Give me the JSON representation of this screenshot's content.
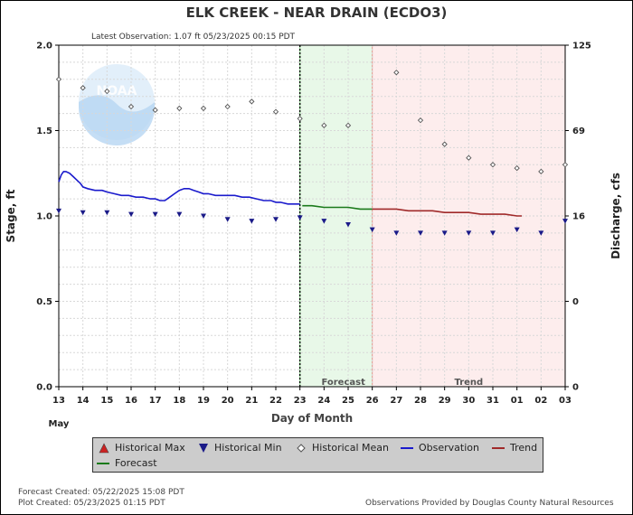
{
  "chart_data": {
    "type": "line",
    "title": "ELK CREEK - NEAR DRAIN  (ECDO3)",
    "latest_observation": "Latest Observation: 1.07 ft 05/23/2025 00:15 PDT",
    "xlabel": "Day of Month",
    "ylabel": "Stage, ft",
    "y2label": "Discharge, cfs",
    "month_label": "May",
    "x_ticks": [
      "13",
      "14",
      "15",
      "16",
      "17",
      "18",
      "19",
      "20",
      "21",
      "22",
      "23",
      "24",
      "25",
      "26",
      "27",
      "28",
      "29",
      "30",
      "31",
      "01",
      "02",
      "03"
    ],
    "xlim": [
      13,
      34
    ],
    "ylim": [
      0,
      2.0
    ],
    "y_ticks": [
      "0.0",
      "0.5",
      "1.0",
      "1.5",
      "2.0"
    ],
    "y2_ticks": [
      {
        "stage": 0.0,
        "label": "0"
      },
      {
        "stage": 0.5,
        "label": "0"
      },
      {
        "stage": 1.0,
        "label": "16"
      },
      {
        "stage": 1.5,
        "label": "69"
      },
      {
        "stage": 2.0,
        "label": "125"
      }
    ],
    "grid": true,
    "now_x": 23,
    "regions": [
      {
        "name": "Forecast",
        "from": 23,
        "to": 26,
        "color": "#e8f8e8",
        "border": "#7fcc7f"
      },
      {
        "name": "Trend",
        "from": 26,
        "to": 34,
        "color": "#fdeded",
        "border": "#ee9999"
      }
    ],
    "series": [
      {
        "name": "Observation",
        "color": "#1a1acc",
        "style": "line",
        "x": [
          13.0,
          13.1,
          13.2,
          13.3,
          13.45,
          13.6,
          13.75,
          13.9,
          14.0,
          14.2,
          14.5,
          14.8,
          15.0,
          15.3,
          15.6,
          15.9,
          16.2,
          16.5,
          16.8,
          17.0,
          17.2,
          17.4,
          17.6,
          17.8,
          18.0,
          18.2,
          18.4,
          18.6,
          18.8,
          19.0,
          19.2,
          19.5,
          19.8,
          20.0,
          20.3,
          20.6,
          20.9,
          21.2,
          21.5,
          21.8,
          22.0,
          22.2,
          22.5,
          22.8,
          23.0
        ],
        "y": [
          1.2,
          1.24,
          1.26,
          1.26,
          1.25,
          1.23,
          1.21,
          1.19,
          1.17,
          1.16,
          1.15,
          1.15,
          1.14,
          1.13,
          1.12,
          1.12,
          1.11,
          1.11,
          1.1,
          1.1,
          1.09,
          1.09,
          1.11,
          1.13,
          1.15,
          1.16,
          1.16,
          1.15,
          1.14,
          1.13,
          1.13,
          1.12,
          1.12,
          1.12,
          1.12,
          1.11,
          1.11,
          1.1,
          1.09,
          1.09,
          1.08,
          1.08,
          1.07,
          1.07,
          1.07
        ]
      },
      {
        "name": "Forecast",
        "color": "#1a7a1a",
        "style": "line",
        "x": [
          23.1,
          23.5,
          24.0,
          24.5,
          25.0,
          25.5,
          26.0
        ],
        "y": [
          1.06,
          1.06,
          1.05,
          1.05,
          1.05,
          1.04,
          1.04
        ]
      },
      {
        "name": "Trend",
        "color": "#a02a2a",
        "style": "line",
        "x": [
          26.0,
          26.5,
          27.0,
          27.5,
          28.0,
          28.5,
          29.0,
          29.5,
          30.0,
          30.5,
          31.0,
          31.5,
          32.0,
          32.2
        ],
        "y": [
          1.04,
          1.04,
          1.04,
          1.03,
          1.03,
          1.03,
          1.02,
          1.02,
          1.02,
          1.01,
          1.01,
          1.01,
          1.0,
          1.0
        ]
      },
      {
        "name": "Historical Mean",
        "color": "#555555",
        "style": "diamond",
        "x": [
          13,
          14,
          15,
          16,
          17,
          18,
          19,
          20,
          21,
          22,
          23,
          24,
          25,
          27,
          28,
          29,
          30,
          31,
          32,
          33,
          34
        ],
        "y": [
          1.8,
          1.75,
          1.73,
          1.64,
          1.62,
          1.63,
          1.63,
          1.64,
          1.67,
          1.61,
          1.57,
          1.53,
          1.53,
          1.84,
          1.56,
          1.42,
          1.34,
          1.3,
          1.28,
          1.26,
          1.3
        ]
      },
      {
        "name": "Historical Min",
        "color": "#1a1a88",
        "style": "triangle-down",
        "x": [
          13,
          14,
          15,
          16,
          17,
          18,
          19,
          20,
          21,
          22,
          23,
          24,
          25,
          26,
          27,
          28,
          29,
          30,
          31,
          32,
          33,
          34
        ],
        "y": [
          1.03,
          1.02,
          1.02,
          1.01,
          1.01,
          1.01,
          1.0,
          0.98,
          0.97,
          0.98,
          0.99,
          0.97,
          0.95,
          0.92,
          0.9,
          0.9,
          0.9,
          0.9,
          0.9,
          0.92,
          0.9,
          0.97
        ]
      }
    ],
    "legend": [
      {
        "name": "Historical Max",
        "symbol": "triangle-up",
        "color": "#cc2222"
      },
      {
        "name": "Historical Min",
        "symbol": "triangle-down",
        "color": "#1a1a88"
      },
      {
        "name": "Historical Mean",
        "symbol": "diamond",
        "color": "#555555"
      },
      {
        "name": "Observation",
        "symbol": "line",
        "color": "#1a1acc"
      },
      {
        "name": "Trend",
        "symbol": "line",
        "color": "#a02a2a"
      },
      {
        "name": "Forecast",
        "symbol": "line",
        "color": "#1a7a1a"
      }
    ],
    "watermark": "NOAA"
  },
  "footer": {
    "forecast_created": "Forecast Created: 05/22/2025 15:08 PDT",
    "plot_created": "Plot Created: 05/23/2025 01:15 PDT",
    "credit": "Observations Provided by Douglas County Natural Resources"
  }
}
